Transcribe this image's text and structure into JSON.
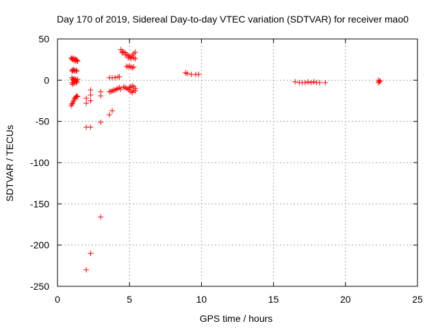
{
  "chart_data": {
    "type": "scatter",
    "title": "Day 170 of 2019, Sidereal Day-to-day VTEC variation (SDTVAR) for receiver mao0",
    "xlabel": "GPS time / hours",
    "ylabel": "SDTVAR / TECUs",
    "xlim": [
      0,
      25
    ],
    "ylim": [
      -250,
      50
    ],
    "xticks": [
      0,
      5,
      10,
      15,
      20,
      25
    ],
    "yticks": [
      -250,
      -200,
      -150,
      -100,
      -50,
      0,
      50
    ],
    "grid": true,
    "marker": "+",
    "color": "#ff0000",
    "series": [
      {
        "name": "SDTVAR",
        "points": [
          [
            0.95,
            27
          ],
          [
            1.0,
            26
          ],
          [
            1.05,
            25
          ],
          [
            1.1,
            27
          ],
          [
            1.15,
            24
          ],
          [
            1.2,
            26
          ],
          [
            1.25,
            23
          ],
          [
            1.3,
            25
          ],
          [
            1.35,
            24
          ],
          [
            1.4,
            23
          ],
          [
            1.0,
            12
          ],
          [
            1.05,
            11
          ],
          [
            1.1,
            13
          ],
          [
            1.15,
            12
          ],
          [
            1.2,
            11
          ],
          [
            1.3,
            12
          ],
          [
            1.35,
            11
          ],
          [
            1.0,
            3
          ],
          [
            1.05,
            1
          ],
          [
            1.1,
            0
          ],
          [
            1.15,
            2
          ],
          [
            1.2,
            -1
          ],
          [
            1.25,
            1
          ],
          [
            1.3,
            0
          ],
          [
            1.35,
            -2
          ],
          [
            1.4,
            1
          ],
          [
            1.0,
            -3
          ],
          [
            1.05,
            -5
          ],
          [
            1.15,
            -4
          ],
          [
            1.3,
            -3
          ],
          [
            0.95,
            -31
          ],
          [
            1.0,
            -29
          ],
          [
            1.05,
            -28
          ],
          [
            1.1,
            -26
          ],
          [
            1.15,
            -24
          ],
          [
            1.2,
            -22
          ],
          [
            1.25,
            -21
          ],
          [
            1.3,
            -20
          ],
          [
            1.35,
            -19
          ],
          [
            1.4,
            -20
          ],
          [
            2.0,
            -22
          ],
          [
            2.0,
            -28
          ],
          [
            2.0,
            -57
          ],
          [
            2.0,
            -230
          ],
          [
            2.3,
            -12
          ],
          [
            2.3,
            -18
          ],
          [
            2.3,
            -25
          ],
          [
            2.3,
            -57
          ],
          [
            2.3,
            -210
          ],
          [
            3.0,
            -14
          ],
          [
            3.0,
            -19
          ],
          [
            3.0,
            -51
          ],
          [
            3.0,
            -166
          ],
          [
            3.6,
            3
          ],
          [
            3.8,
            3
          ],
          [
            4.0,
            3
          ],
          [
            4.2,
            4
          ],
          [
            4.3,
            4
          ],
          [
            3.6,
            -14
          ],
          [
            3.7,
            -14
          ],
          [
            3.8,
            -13
          ],
          [
            3.9,
            -12
          ],
          [
            4.0,
            -12
          ],
          [
            4.1,
            -11
          ],
          [
            4.2,
            -10
          ],
          [
            4.3,
            -9
          ],
          [
            4.4,
            -11
          ],
          [
            3.6,
            -42
          ],
          [
            3.8,
            -37
          ],
          [
            4.4,
            37
          ],
          [
            4.5,
            35
          ],
          [
            4.6,
            34
          ],
          [
            4.7,
            33
          ],
          [
            4.8,
            31
          ],
          [
            4.9,
            30
          ],
          [
            5.0,
            29
          ],
          [
            5.1,
            28
          ],
          [
            5.2,
            30
          ],
          [
            5.3,
            32
          ],
          [
            5.4,
            34
          ],
          [
            4.5,
            33
          ],
          [
            4.7,
            31
          ],
          [
            4.9,
            27
          ],
          [
            5.1,
            26
          ],
          [
            5.3,
            27
          ],
          [
            5.4,
            26
          ],
          [
            4.8,
            17
          ],
          [
            4.9,
            16
          ],
          [
            5.0,
            17
          ],
          [
            5.1,
            16
          ],
          [
            5.2,
            15
          ],
          [
            5.3,
            16
          ],
          [
            4.6,
            -8
          ],
          [
            4.7,
            -9
          ],
          [
            4.8,
            -10
          ],
          [
            4.9,
            -11
          ],
          [
            5.0,
            -9
          ],
          [
            5.1,
            -8
          ],
          [
            5.2,
            -7
          ],
          [
            5.3,
            -8
          ],
          [
            5.4,
            -10
          ],
          [
            5.0,
            -12
          ],
          [
            5.1,
            -14
          ],
          [
            5.2,
            -15
          ],
          [
            5.3,
            -12
          ],
          [
            5.4,
            -13
          ],
          [
            8.9,
            9
          ],
          [
            9.0,
            8
          ],
          [
            9.3,
            7
          ],
          [
            9.6,
            7
          ],
          [
            9.8,
            7
          ],
          [
            16.5,
            -2
          ],
          [
            16.8,
            -3
          ],
          [
            17.0,
            -3
          ],
          [
            17.2,
            -3
          ],
          [
            17.4,
            -2
          ],
          [
            17.6,
            -3
          ],
          [
            17.8,
            -2
          ],
          [
            18.0,
            -3
          ],
          [
            18.2,
            -3
          ],
          [
            18.6,
            -3
          ],
          [
            22.3,
            -3
          ],
          [
            22.3,
            0
          ],
          [
            22.35,
            -2
          ],
          [
            22.4,
            -1
          ]
        ]
      }
    ]
  }
}
